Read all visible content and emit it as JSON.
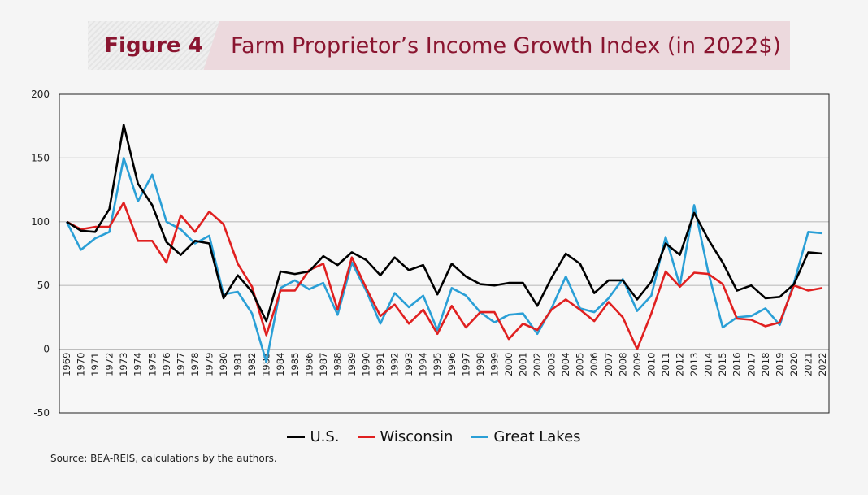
{
  "header": {
    "figure_label": "Figure 4",
    "title": "Farm Proprietor’s Income Growth Index (in 2022$)"
  },
  "source": "Source: BEA-REIS, calculations by the authors.",
  "chart_data": {
    "type": "line",
    "title": "Farm Proprietor’s Income Growth Index (in 2022$)",
    "xlabel": "",
    "ylabel": "",
    "ylim": [
      -50,
      200
    ],
    "yticks": [
      -50,
      0,
      50,
      100,
      150,
      200
    ],
    "grid": true,
    "legend_placement": "bottom",
    "x": [
      1969,
      1970,
      1971,
      1972,
      1973,
      1974,
      1975,
      1976,
      1977,
      1978,
      1979,
      1980,
      1981,
      1982,
      1983,
      1984,
      1985,
      1986,
      1987,
      1988,
      1989,
      1990,
      1991,
      1992,
      1993,
      1994,
      1995,
      1996,
      1997,
      1998,
      1999,
      2000,
      2001,
      2002,
      2003,
      2004,
      2005,
      2006,
      2007,
      2008,
      2009,
      2010,
      2011,
      2012,
      2013,
      2014,
      2015,
      2016,
      2017,
      2018,
      2019,
      2020,
      2021,
      2022
    ],
    "series": [
      {
        "name": "U.S.",
        "color": "#000000",
        "values": [
          100,
          93,
          92,
          110,
          176,
          130,
          113,
          84,
          74,
          85,
          83,
          40,
          58,
          45,
          22,
          61,
          59,
          61,
          73,
          66,
          76,
          70,
          58,
          72,
          62,
          66,
          43,
          67,
          57,
          51,
          50,
          52,
          52,
          34,
          56,
          75,
          67,
          44,
          54,
          54,
          39,
          53,
          83,
          74,
          107,
          86,
          68,
          46,
          50,
          40,
          41,
          51,
          76,
          75
        ]
      },
      {
        "name": "Wisconsin",
        "color": "#e02020",
        "values": [
          100,
          94,
          96,
          96,
          115,
          85,
          85,
          68,
          105,
          92,
          108,
          98,
          67,
          49,
          11,
          46,
          46,
          62,
          67,
          31,
          72,
          48,
          26,
          35,
          20,
          31,
          12,
          34,
          17,
          29,
          29,
          8,
          20,
          15,
          31,
          39,
          31,
          22,
          37,
          25,
          0,
          28,
          61,
          49,
          60,
          59,
          51,
          24,
          23,
          18,
          21,
          50,
          46,
          48
        ]
      },
      {
        "name": "Great Lakes",
        "color": "#2a9fd6",
        "values": [
          100,
          78,
          87,
          92,
          150,
          116,
          137,
          100,
          94,
          83,
          89,
          43,
          45,
          28,
          -10,
          48,
          54,
          47,
          52,
          27,
          68,
          46,
          20,
          44,
          33,
          42,
          15,
          48,
          42,
          29,
          21,
          27,
          28,
          12,
          32,
          57,
          32,
          29,
          40,
          55,
          30,
          42,
          88,
          50,
          113,
          60,
          17,
          25,
          26,
          32,
          19,
          52,
          92,
          91
        ]
      }
    ]
  }
}
